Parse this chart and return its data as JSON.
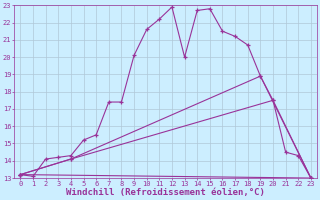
{
  "xlabel": "Windchill (Refroidissement éolien,°C)",
  "bg_color": "#cceeff",
  "grid_color": "#b0c8d8",
  "line_color": "#993399",
  "xlim": [
    -0.5,
    23.5
  ],
  "ylim": [
    13,
    23
  ],
  "xticks": [
    0,
    1,
    2,
    3,
    4,
    5,
    6,
    7,
    8,
    9,
    10,
    11,
    12,
    13,
    14,
    15,
    16,
    17,
    18,
    19,
    20,
    21,
    22,
    23
  ],
  "yticks": [
    13,
    14,
    15,
    16,
    17,
    18,
    19,
    20,
    21,
    22,
    23
  ],
  "curve1_x": [
    0,
    1,
    2,
    3,
    4,
    5,
    6,
    7,
    8,
    9,
    10,
    11,
    12,
    13,
    14,
    15,
    16,
    17,
    18,
    19,
    20,
    21,
    22,
    23
  ],
  "curve1_y": [
    13.2,
    13.1,
    14.1,
    14.2,
    14.3,
    15.2,
    15.5,
    17.4,
    17.4,
    20.1,
    21.6,
    22.2,
    22.9,
    20.0,
    22.7,
    22.8,
    21.5,
    21.2,
    20.7,
    18.9,
    17.5,
    14.5,
    14.3,
    13.0
  ],
  "curve2_x": [
    0,
    4,
    19,
    23
  ],
  "curve2_y": [
    13.2,
    14.1,
    18.9,
    13.0
  ],
  "curve3_x": [
    0,
    4,
    20,
    23
  ],
  "curve3_y": [
    13.2,
    14.1,
    17.5,
    13.0
  ],
  "curve4_x": [
    0,
    23
  ],
  "curve4_y": [
    13.2,
    13.0
  ],
  "fontsize_tick": 5.0,
  "fontsize_label": 6.5
}
